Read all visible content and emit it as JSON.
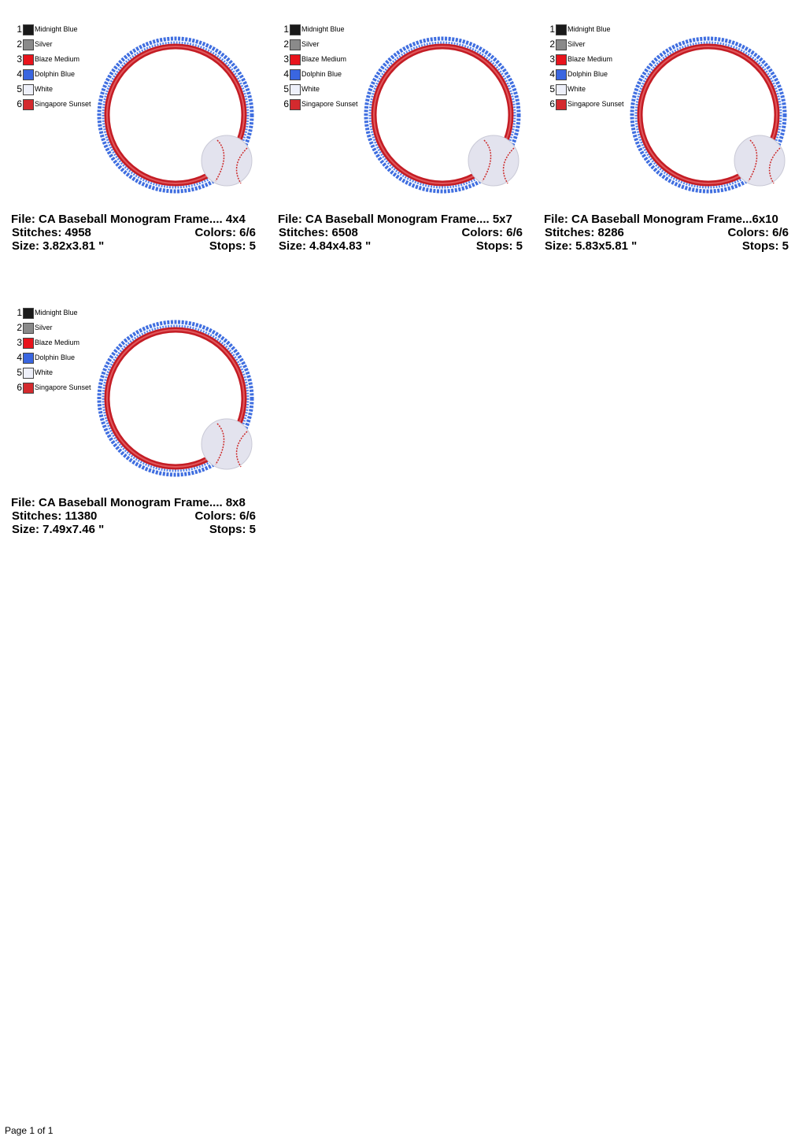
{
  "designs": [
    {
      "threads": [
        {
          "number": "1",
          "name": "Midnight Blue",
          "color": "#1a1a1a"
        },
        {
          "number": "2",
          "name": "Silver",
          "color": "#8a8a8a"
        },
        {
          "number": "3",
          "name": "Blaze Medium",
          "color": "#e8141c"
        },
        {
          "number": "4",
          "name": "Dolphin Blue",
          "color": "#3a66e0"
        },
        {
          "number": "5",
          "name": "White",
          "color": "#eef0fa"
        },
        {
          "number": "6",
          "name": "Singapore Sunset",
          "color": "#d42a2e"
        }
      ],
      "file": "File: CA Baseball Monogram Frame.... 4x4",
      "stitches": "Stitches: 4958",
      "colors": "Colors: 6/6",
      "size": "Size: 3.82x3.81 \"",
      "stops": "Stops: 5"
    },
    {
      "threads": [
        {
          "number": "1",
          "name": "Midnight Blue",
          "color": "#1a1a1a"
        },
        {
          "number": "2",
          "name": "Silver",
          "color": "#8a8a8a"
        },
        {
          "number": "3",
          "name": "Blaze Medium",
          "color": "#e8141c"
        },
        {
          "number": "4",
          "name": "Dolphin Blue",
          "color": "#3a66e0"
        },
        {
          "number": "5",
          "name": "White",
          "color": "#eef0fa"
        },
        {
          "number": "6",
          "name": "Singapore Sunset",
          "color": "#d42a2e"
        }
      ],
      "file": "File: CA Baseball Monogram Frame.... 5x7",
      "stitches": "Stitches: 6508",
      "colors": "Colors: 6/6",
      "size": "Size: 4.84x4.83 \"",
      "stops": "Stops: 5"
    },
    {
      "threads": [
        {
          "number": "1",
          "name": "Midnight Blue",
          "color": "#1a1a1a"
        },
        {
          "number": "2",
          "name": "Silver",
          "color": "#8a8a8a"
        },
        {
          "number": "3",
          "name": "Blaze Medium",
          "color": "#e8141c"
        },
        {
          "number": "4",
          "name": "Dolphin Blue",
          "color": "#3a66e0"
        },
        {
          "number": "5",
          "name": "White",
          "color": "#eef0fa"
        },
        {
          "number": "6",
          "name": "Singapore Sunset",
          "color": "#d42a2e"
        }
      ],
      "file": "File: CA Baseball Monogram Frame...6x10",
      "stitches": "Stitches: 8286",
      "colors": "Colors: 6/6",
      "size": "Size: 5.83x5.81 \"",
      "stops": "Stops: 5"
    },
    {
      "threads": [
        {
          "number": "1",
          "name": "Midnight Blue",
          "color": "#1a1a1a"
        },
        {
          "number": "2",
          "name": "Silver",
          "color": "#8a8a8a"
        },
        {
          "number": "3",
          "name": "Blaze Medium",
          "color": "#e8141c"
        },
        {
          "number": "4",
          "name": "Dolphin Blue",
          "color": "#3a66e0"
        },
        {
          "number": "5",
          "name": "White",
          "color": "#eef0fa"
        },
        {
          "number": "6",
          "name": "Singapore Sunset",
          "color": "#d42a2e"
        }
      ],
      "file": "File: CA Baseball Monogram Frame.... 8x8",
      "stitches": "Stitches: 11380",
      "colors": "Colors: 6/6",
      "size": "Size: 7.49x7.46 \"",
      "stops": "Stops: 5"
    }
  ],
  "footer": "Page 1 of 1"
}
